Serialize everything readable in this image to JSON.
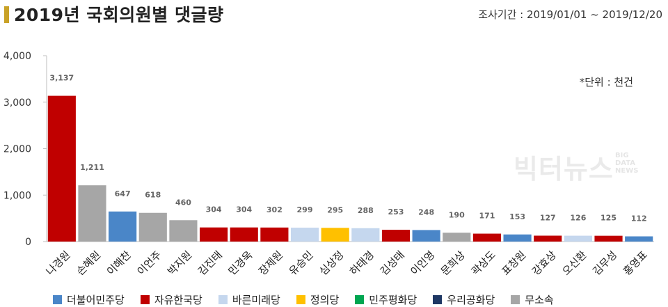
{
  "header": {
    "title": "2019년 국회의원별 댓글량",
    "period": "조사기간 : 2019/01/01 ~ 2019/12/20",
    "unit": "*단위 : 천건"
  },
  "watermark": {
    "main": "빅터뉴스",
    "sub": [
      "BIG",
      "DATA",
      "NEWS"
    ]
  },
  "colors": {
    "더불어민주당": "#4a86c8",
    "자유한국당": "#c00000",
    "바른미래당": "#c5d7ee",
    "정의당": "#ffc000",
    "민주평화당": "#00a651",
    "우리공화당": "#1f3864",
    "무소속": "#a6a6a6"
  },
  "legend": [
    "더불어민주당",
    "자유한국당",
    "바른미래당",
    "정의당",
    "민주평화당",
    "우리공화당",
    "무소속"
  ],
  "chart_data": {
    "type": "bar",
    "categories": [
      "나경원",
      "손혜원",
      "이해찬",
      "이언주",
      "박지원",
      "김진태",
      "민경욱",
      "장제원",
      "유승민",
      "심상정",
      "하태경",
      "김성태",
      "이인영",
      "문희상",
      "곽상도",
      "표창원",
      "강효상",
      "오신환",
      "김무성",
      "홍영표"
    ],
    "values": [
      3137,
      1211,
      647,
      618,
      460,
      304,
      304,
      302,
      299,
      295,
      288,
      253,
      248,
      190,
      171,
      153,
      127,
      126,
      125,
      112
    ],
    "value_labels": [
      "3,137",
      "1,211",
      "647",
      "618",
      "460",
      "304",
      "304",
      "302",
      "299",
      "295",
      "288",
      "253",
      "248",
      "190",
      "171",
      "153",
      "127",
      "126",
      "125",
      "112"
    ],
    "parties": [
      "자유한국당",
      "무소속",
      "더불어민주당",
      "무소속",
      "무소속",
      "자유한국당",
      "자유한국당",
      "자유한국당",
      "바른미래당",
      "정의당",
      "바른미래당",
      "자유한국당",
      "더불어민주당",
      "무소속",
      "자유한국당",
      "더불어민주당",
      "자유한국당",
      "바른미래당",
      "자유한국당",
      "더불어민주당"
    ],
    "ylim": [
      0,
      4000
    ],
    "yticks": [
      0,
      1000,
      2000,
      3000,
      4000
    ],
    "ytick_labels": [
      "0",
      "1,000",
      "2,000",
      "3,000",
      "4,000"
    ],
    "grid": false,
    "legend_position": "bottom"
  }
}
